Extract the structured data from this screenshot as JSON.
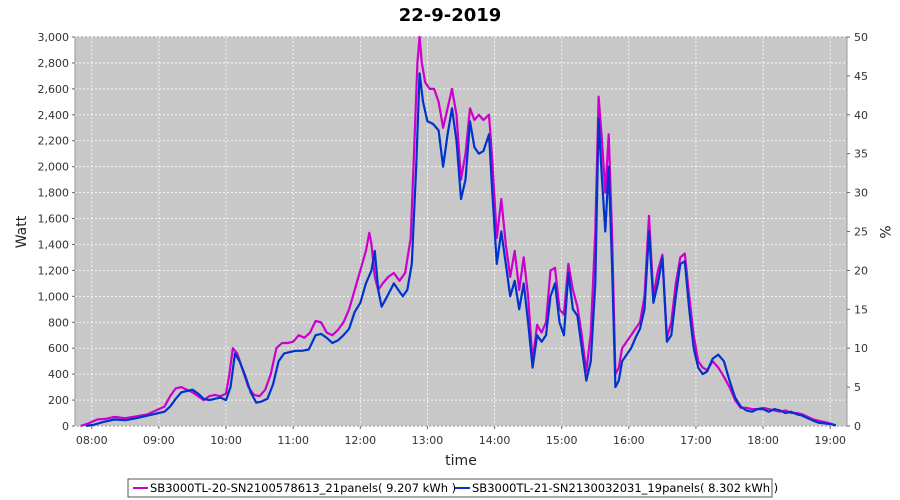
{
  "chart_data": {
    "type": "line",
    "title": "22-9-2019",
    "xlabel": "time",
    "ylabel": "Watt",
    "y2label": "%",
    "x_range": [
      "07:45",
      "19:15"
    ],
    "ylim": [
      0,
      3000
    ],
    "y2lim": [
      0,
      50
    ],
    "x_ticks": [
      "08:00",
      "09:00",
      "10:00",
      "11:00",
      "12:00",
      "13:00",
      "14:00",
      "15:00",
      "16:00",
      "17:00",
      "18:00",
      "19:00"
    ],
    "y_ticks": [
      "0",
      "200",
      "400",
      "600",
      "800",
      "1,000",
      "1,200",
      "1,400",
      "1,600",
      "1,800",
      "2,000",
      "2,200",
      "2,400",
      "2,600",
      "2,800",
      "3,000"
    ],
    "y2_ticks": [
      "0",
      "5",
      "10",
      "15",
      "20",
      "25",
      "30",
      "35",
      "40",
      "45",
      "50"
    ],
    "grid": true,
    "legend_position": "bottom",
    "plot_background": "#c8c8c8",
    "series": [
      {
        "name": "SB3000TL-20-SN2100578613_21panels( 9.207 kWh )",
        "color": "#cc00cc",
        "points": [
          [
            "07:50",
            0
          ],
          [
            "07:57",
            20
          ],
          [
            "08:05",
            50
          ],
          [
            "08:12",
            55
          ],
          [
            "08:20",
            70
          ],
          [
            "08:30",
            60
          ],
          [
            "08:40",
            75
          ],
          [
            "08:50",
            90
          ],
          [
            "09:00",
            130
          ],
          [
            "09:05",
            150
          ],
          [
            "09:10",
            230
          ],
          [
            "09:15",
            290
          ],
          [
            "09:20",
            300
          ],
          [
            "09:25",
            280
          ],
          [
            "09:30",
            260
          ],
          [
            "09:35",
            230
          ],
          [
            "09:40",
            200
          ],
          [
            "09:45",
            230
          ],
          [
            "09:50",
            240
          ],
          [
            "09:55",
            230
          ],
          [
            "10:00",
            250
          ],
          [
            "10:03",
            400
          ],
          [
            "10:06",
            600
          ],
          [
            "10:10",
            560
          ],
          [
            "10:15",
            430
          ],
          [
            "10:20",
            300
          ],
          [
            "10:25",
            240
          ],
          [
            "10:30",
            230
          ],
          [
            "10:35",
            280
          ],
          [
            "10:40",
            400
          ],
          [
            "10:45",
            600
          ],
          [
            "10:50",
            640
          ],
          [
            "10:55",
            640
          ],
          [
            "11:00",
            650
          ],
          [
            "11:05",
            700
          ],
          [
            "11:10",
            680
          ],
          [
            "11:15",
            720
          ],
          [
            "11:20",
            810
          ],
          [
            "11:25",
            800
          ],
          [
            "11:30",
            720
          ],
          [
            "11:35",
            700
          ],
          [
            "11:40",
            740
          ],
          [
            "11:45",
            800
          ],
          [
            "11:50",
            900
          ],
          [
            "11:55",
            1050
          ],
          [
            "12:00",
            1200
          ],
          [
            "12:05",
            1350
          ],
          [
            "12:08",
            1490
          ],
          [
            "12:10",
            1400
          ],
          [
            "12:13",
            1150
          ],
          [
            "12:16",
            1050
          ],
          [
            "12:20",
            1100
          ],
          [
            "12:25",
            1150
          ],
          [
            "12:30",
            1180
          ],
          [
            "12:35",
            1120
          ],
          [
            "12:40",
            1180
          ],
          [
            "12:45",
            1450
          ],
          [
            "12:48",
            2100
          ],
          [
            "12:51",
            2800
          ],
          [
            "12:53",
            3000
          ],
          [
            "12:55",
            2800
          ],
          [
            "12:58",
            2650
          ],
          [
            "13:02",
            2600
          ],
          [
            "13:06",
            2600
          ],
          [
            "13:10",
            2500
          ],
          [
            "13:14",
            2300
          ],
          [
            "13:18",
            2450
          ],
          [
            "13:22",
            2600
          ],
          [
            "13:26",
            2400
          ],
          [
            "13:30",
            1900
          ],
          [
            "13:34",
            2100
          ],
          [
            "13:38",
            2450
          ],
          [
            "13:42",
            2360
          ],
          [
            "13:46",
            2400
          ],
          [
            "13:50",
            2360
          ],
          [
            "13:55",
            2400
          ],
          [
            "13:58",
            2050
          ],
          [
            "14:02",
            1450
          ],
          [
            "14:06",
            1750
          ],
          [
            "14:10",
            1400
          ],
          [
            "14:14",
            1150
          ],
          [
            "14:18",
            1350
          ],
          [
            "14:22",
            1050
          ],
          [
            "14:26",
            1300
          ],
          [
            "14:30",
            1000
          ],
          [
            "14:34",
            500
          ],
          [
            "14:38",
            780
          ],
          [
            "14:42",
            720
          ],
          [
            "14:46",
            800
          ],
          [
            "14:50",
            1200
          ],
          [
            "14:54",
            1220
          ],
          [
            "14:58",
            900
          ],
          [
            "15:02",
            860
          ],
          [
            "15:06",
            1250
          ],
          [
            "15:10",
            1050
          ],
          [
            "15:14",
            920
          ],
          [
            "15:18",
            700
          ],
          [
            "15:22",
            420
          ],
          [
            "15:26",
            720
          ],
          [
            "15:30",
            1500
          ],
          [
            "15:33",
            2540
          ],
          [
            "15:36",
            2200
          ],
          [
            "15:39",
            1800
          ],
          [
            "15:42",
            2250
          ],
          [
            "15:45",
            1500
          ],
          [
            "15:48",
            400
          ],
          [
            "15:51",
            450
          ],
          [
            "15:54",
            600
          ],
          [
            "15:58",
            650
          ],
          [
            "16:02",
            700
          ],
          [
            "16:06",
            750
          ],
          [
            "16:10",
            800
          ],
          [
            "16:14",
            1000
          ],
          [
            "16:18",
            1620
          ],
          [
            "16:22",
            1000
          ],
          [
            "16:26",
            1200
          ],
          [
            "16:30",
            1320
          ],
          [
            "16:34",
            680
          ],
          [
            "16:38",
            800
          ],
          [
            "16:42",
            1100
          ],
          [
            "16:46",
            1300
          ],
          [
            "16:50",
            1330
          ],
          [
            "16:54",
            1000
          ],
          [
            "16:58",
            700
          ],
          [
            "17:02",
            500
          ],
          [
            "17:06",
            450
          ],
          [
            "17:10",
            430
          ],
          [
            "17:15",
            500
          ],
          [
            "17:20",
            450
          ],
          [
            "17:25",
            380
          ],
          [
            "17:30",
            300
          ],
          [
            "17:35",
            200
          ],
          [
            "17:40",
            140
          ],
          [
            "17:45",
            140
          ],
          [
            "17:50",
            130
          ],
          [
            "17:55",
            130
          ],
          [
            "18:00",
            140
          ],
          [
            "18:05",
            130
          ],
          [
            "18:10",
            120
          ],
          [
            "18:15",
            110
          ],
          [
            "18:20",
            120
          ],
          [
            "18:25",
            100
          ],
          [
            "18:30",
            100
          ],
          [
            "18:35",
            90
          ],
          [
            "18:40",
            70
          ],
          [
            "18:45",
            50
          ],
          [
            "18:50",
            40
          ],
          [
            "18:55",
            30
          ],
          [
            "19:00",
            20
          ],
          [
            "19:05",
            5
          ]
        ]
      },
      {
        "name": "SB3000TL-21-SN2130032031_19panels( 8.302 kWh )",
        "color": "#0033cc",
        "points": [
          [
            "07:55",
            0
          ],
          [
            "08:02",
            10
          ],
          [
            "08:10",
            30
          ],
          [
            "08:20",
            50
          ],
          [
            "08:30",
            45
          ],
          [
            "08:40",
            60
          ],
          [
            "08:50",
            80
          ],
          [
            "09:00",
            100
          ],
          [
            "09:05",
            110
          ],
          [
            "09:10",
            150
          ],
          [
            "09:15",
            210
          ],
          [
            "09:20",
            260
          ],
          [
            "09:25",
            270
          ],
          [
            "09:30",
            280
          ],
          [
            "09:35",
            250
          ],
          [
            "09:40",
            210
          ],
          [
            "09:45",
            200
          ],
          [
            "09:50",
            210
          ],
          [
            "09:55",
            220
          ],
          [
            "10:00",
            200
          ],
          [
            "10:04",
            300
          ],
          [
            "10:08",
            560
          ],
          [
            "10:12",
            500
          ],
          [
            "10:17",
            390
          ],
          [
            "10:22",
            260
          ],
          [
            "10:27",
            180
          ],
          [
            "10:32",
            190
          ],
          [
            "10:37",
            210
          ],
          [
            "10:42",
            320
          ],
          [
            "10:47",
            500
          ],
          [
            "10:52",
            560
          ],
          [
            "10:57",
            570
          ],
          [
            "11:02",
            580
          ],
          [
            "11:08",
            580
          ],
          [
            "11:14",
            590
          ],
          [
            "11:20",
            700
          ],
          [
            "11:25",
            710
          ],
          [
            "11:30",
            680
          ],
          [
            "11:35",
            640
          ],
          [
            "11:40",
            660
          ],
          [
            "11:45",
            700
          ],
          [
            "11:50",
            750
          ],
          [
            "11:55",
            880
          ],
          [
            "12:00",
            950
          ],
          [
            "12:05",
            1100
          ],
          [
            "12:10",
            1200
          ],
          [
            "12:13",
            1350
          ],
          [
            "12:16",
            1050
          ],
          [
            "12:19",
            920
          ],
          [
            "12:24",
            1000
          ],
          [
            "12:30",
            1100
          ],
          [
            "12:34",
            1050
          ],
          [
            "12:38",
            1000
          ],
          [
            "12:42",
            1050
          ],
          [
            "12:46",
            1250
          ],
          [
            "12:50",
            2000
          ],
          [
            "12:53",
            2720
          ],
          [
            "12:56",
            2500
          ],
          [
            "13:00",
            2350
          ],
          [
            "13:05",
            2330
          ],
          [
            "13:10",
            2280
          ],
          [
            "13:14",
            2000
          ],
          [
            "13:18",
            2250
          ],
          [
            "13:22",
            2450
          ],
          [
            "13:26",
            2200
          ],
          [
            "13:30",
            1750
          ],
          [
            "13:34",
            1900
          ],
          [
            "13:38",
            2350
          ],
          [
            "13:42",
            2150
          ],
          [
            "13:46",
            2100
          ],
          [
            "13:50",
            2120
          ],
          [
            "13:55",
            2250
          ],
          [
            "13:58",
            1800
          ],
          [
            "14:02",
            1250
          ],
          [
            "14:06",
            1500
          ],
          [
            "14:10",
            1250
          ],
          [
            "14:14",
            1000
          ],
          [
            "14:18",
            1120
          ],
          [
            "14:22",
            900
          ],
          [
            "14:26",
            1100
          ],
          [
            "14:30",
            800
          ],
          [
            "14:34",
            450
          ],
          [
            "14:38",
            700
          ],
          [
            "14:42",
            650
          ],
          [
            "14:46",
            700
          ],
          [
            "14:50",
            1000
          ],
          [
            "14:54",
            1100
          ],
          [
            "14:58",
            800
          ],
          [
            "15:02",
            700
          ],
          [
            "15:06",
            1180
          ],
          [
            "15:10",
            900
          ],
          [
            "15:14",
            850
          ],
          [
            "15:18",
            600
          ],
          [
            "15:22",
            350
          ],
          [
            "15:26",
            500
          ],
          [
            "15:30",
            1100
          ],
          [
            "15:33",
            2370
          ],
          [
            "15:36",
            1900
          ],
          [
            "15:39",
            1500
          ],
          [
            "15:42",
            2000
          ],
          [
            "15:45",
            1250
          ],
          [
            "15:48",
            300
          ],
          [
            "15:51",
            350
          ],
          [
            "15:54",
            500
          ],
          [
            "15:58",
            550
          ],
          [
            "16:02",
            600
          ],
          [
            "16:06",
            680
          ],
          [
            "16:10",
            750
          ],
          [
            "16:14",
            900
          ],
          [
            "16:18",
            1500
          ],
          [
            "16:22",
            950
          ],
          [
            "16:26",
            1100
          ],
          [
            "16:30",
            1300
          ],
          [
            "16:34",
            650
          ],
          [
            "16:38",
            700
          ],
          [
            "16:42",
            1000
          ],
          [
            "16:46",
            1250
          ],
          [
            "16:50",
            1270
          ],
          [
            "16:54",
            900
          ],
          [
            "16:58",
            600
          ],
          [
            "17:02",
            450
          ],
          [
            "17:06",
            400
          ],
          [
            "17:10",
            420
          ],
          [
            "17:15",
            520
          ],
          [
            "17:20",
            550
          ],
          [
            "17:25",
            500
          ],
          [
            "17:30",
            350
          ],
          [
            "17:35",
            220
          ],
          [
            "17:40",
            150
          ],
          [
            "17:45",
            120
          ],
          [
            "17:50",
            110
          ],
          [
            "17:55",
            130
          ],
          [
            "18:00",
            130
          ],
          [
            "18:05",
            110
          ],
          [
            "18:10",
            130
          ],
          [
            "18:15",
            120
          ],
          [
            "18:20",
            100
          ],
          [
            "18:25",
            110
          ],
          [
            "18:30",
            90
          ],
          [
            "18:35",
            80
          ],
          [
            "18:40",
            60
          ],
          [
            "18:45",
            40
          ],
          [
            "18:50",
            25
          ],
          [
            "18:55",
            20
          ],
          [
            "19:00",
            15
          ],
          [
            "19:05",
            5
          ]
        ]
      }
    ]
  }
}
